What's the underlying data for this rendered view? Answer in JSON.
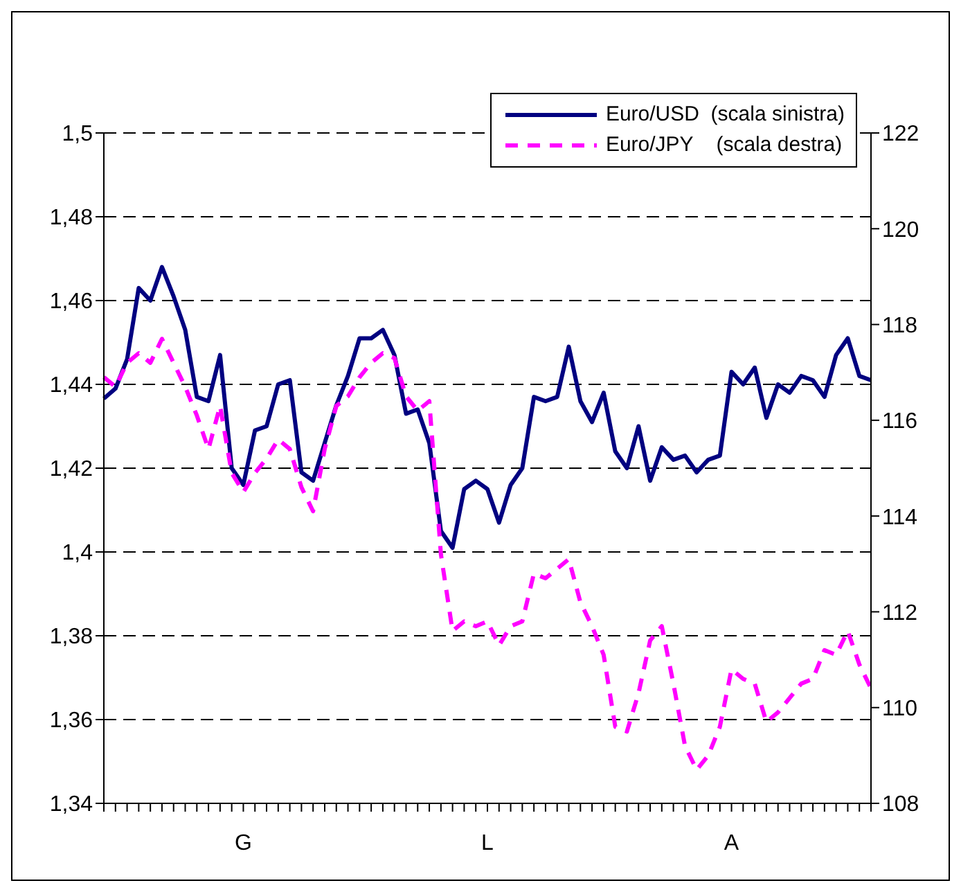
{
  "chart_data": {
    "type": "line",
    "categories": [
      null,
      null,
      null,
      null,
      null,
      null,
      null,
      null,
      null,
      null,
      null,
      null,
      "G",
      null,
      null,
      null,
      null,
      null,
      null,
      null,
      null,
      null,
      null,
      null,
      null,
      null,
      null,
      null,
      null,
      null,
      null,
      null,
      null,
      "L",
      null,
      null,
      null,
      null,
      null,
      null,
      null,
      null,
      null,
      null,
      null,
      null,
      null,
      null,
      null,
      null,
      null,
      null,
      null,
      null,
      "A",
      null,
      null,
      null,
      null,
      null,
      null,
      null,
      null,
      null,
      null,
      null,
      null
    ],
    "series": [
      {
        "name": "Euro/USD  (scala sinistra)",
        "color": "#000080",
        "line_style": "solid",
        "values": [
          1.4366,
          1.439,
          1.446,
          1.463,
          1.46,
          1.468,
          1.461,
          1.453,
          1.437,
          1.436,
          1.447,
          1.42,
          1.416,
          1.429,
          1.43,
          1.44,
          1.441,
          1.419,
          1.417,
          1.426,
          1.435,
          1.442,
          1.451,
          1.451,
          1.453,
          1.447,
          1.433,
          1.434,
          1.426,
          1.405,
          1.401,
          1.415,
          1.417,
          1.415,
          1.407,
          1.416,
          1.42,
          1.437,
          1.436,
          1.437,
          1.449,
          1.436,
          1.431,
          1.438,
          1.424,
          1.42,
          1.43,
          1.417,
          1.425,
          1.422,
          1.423,
          1.419,
          1.422,
          1.423,
          1.443,
          1.44,
          1.444,
          1.432,
          1.44,
          1.438,
          1.442,
          1.441,
          1.437,
          1.447,
          1.451,
          1.442,
          1.441
        ]
      },
      {
        "name": "Euro/JPY    (scala destra)",
        "color": "#ff00ff",
        "line_style": "dashed",
        "axis": "y2",
        "values": [
          116.9,
          116.7,
          117.2,
          117.4,
          117.2,
          117.7,
          117.2,
          116.7,
          116.1,
          115.4,
          116.3,
          114.9,
          114.5,
          114.9,
          115.2,
          115.6,
          115.4,
          114.6,
          114.1,
          115.4,
          116.3,
          116.5,
          116.9,
          117.2,
          117.4,
          117.3,
          116.5,
          116.2,
          116.4,
          113.2,
          111.6,
          111.8,
          111.7,
          111.8,
          111.3,
          111.7,
          111.8,
          112.8,
          112.7,
          112.9,
          113.1,
          112.2,
          111.7,
          111.1,
          109.6,
          109.5,
          110.3,
          111.4,
          111.7,
          110.5,
          109.2,
          108.7,
          109.0,
          109.6,
          110.8,
          110.6,
          110.5,
          109.7,
          109.9,
          110.2,
          110.5,
          110.6,
          111.2,
          111.1,
          111.6,
          110.9,
          110.4
        ]
      }
    ],
    "ylim": [
      1.34,
      1.5
    ],
    "yticks": [
      {
        "value": 1.34,
        "label": "1,34"
      },
      {
        "value": 1.36,
        "label": "1,36"
      },
      {
        "value": 1.38,
        "label": "1,38"
      },
      {
        "value": 1.4,
        "label": "1,4"
      },
      {
        "value": 1.42,
        "label": "1,42"
      },
      {
        "value": 1.44,
        "label": "1,44"
      },
      {
        "value": 1.46,
        "label": "1,46"
      },
      {
        "value": 1.48,
        "label": "1,48"
      },
      {
        "value": 1.5,
        "label": "1,5"
      }
    ],
    "y2lim": [
      108,
      122
    ],
    "y2ticks": [
      108,
      110,
      112,
      114,
      116,
      118,
      120,
      122
    ],
    "grid": "y",
    "legend": "top right",
    "marker": "none"
  }
}
